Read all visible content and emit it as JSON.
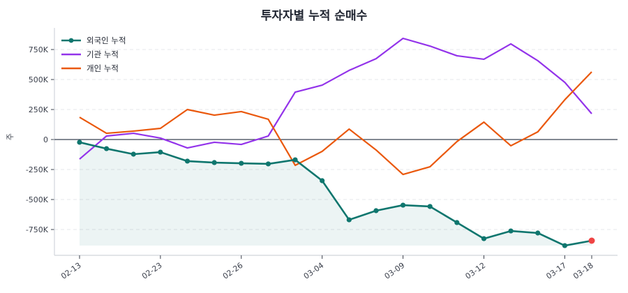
{
  "chart_data": {
    "type": "line",
    "title": "투자자별 누적 순매수",
    "xlabel": "",
    "ylabel": "주",
    "ylim": [
      -950000,
      920000
    ],
    "yticks": [
      {
        "value": 750000,
        "label": "750K"
      },
      {
        "value": 500000,
        "label": "500K"
      },
      {
        "value": 250000,
        "label": "250K"
      },
      {
        "value": 0,
        "label": "0"
      },
      {
        "value": -250000,
        "label": "-250K"
      },
      {
        "value": -500000,
        "label": "-500K"
      },
      {
        "value": -750000,
        "label": "-750K"
      }
    ],
    "xticks": [
      {
        "index": 0,
        "label": "02-13"
      },
      {
        "index": 3,
        "label": "02-23"
      },
      {
        "index": 6,
        "label": "02-26"
      },
      {
        "index": 9,
        "label": "03-04"
      },
      {
        "index": 12,
        "label": "03-09"
      },
      {
        "index": 15,
        "label": "03-12"
      },
      {
        "index": 18,
        "label": "03-17"
      },
      {
        "index": 19,
        "label": "03-18"
      }
    ],
    "grid": true,
    "legend_position": "upper left",
    "series": [
      {
        "name": "외국인 누적",
        "color": "#0f766e",
        "markers": true,
        "fill": true,
        "values": [
          -23000,
          -76000,
          -122000,
          -105000,
          -180000,
          -192000,
          -198000,
          -203000,
          -169000,
          -343000,
          -669000,
          -593000,
          -547000,
          -558000,
          -692000,
          -826000,
          -762000,
          -779000,
          -884000,
          -843000
        ]
      },
      {
        "name": "기관 누적",
        "color": "#9333ea",
        "markers": false,
        "values": [
          -163000,
          29000,
          52000,
          12000,
          -70000,
          -23000,
          -41000,
          29000,
          395000,
          453000,
          576000,
          674000,
          843000,
          779000,
          698000,
          669000,
          797000,
          657000,
          477000,
          215000
        ]
      },
      {
        "name": "개인 누적",
        "color": "#ea580c",
        "markers": false,
        "values": [
          186000,
          52000,
          70000,
          93000,
          250000,
          203000,
          233000,
          169000,
          -215000,
          -99000,
          87000,
          -87000,
          -291000,
          -227000,
          -17000,
          145000,
          -52000,
          64000,
          331000,
          564000
        ]
      }
    ],
    "last_point_highlight": {
      "series": "외국인 누적",
      "color": "#ef4444"
    }
  }
}
